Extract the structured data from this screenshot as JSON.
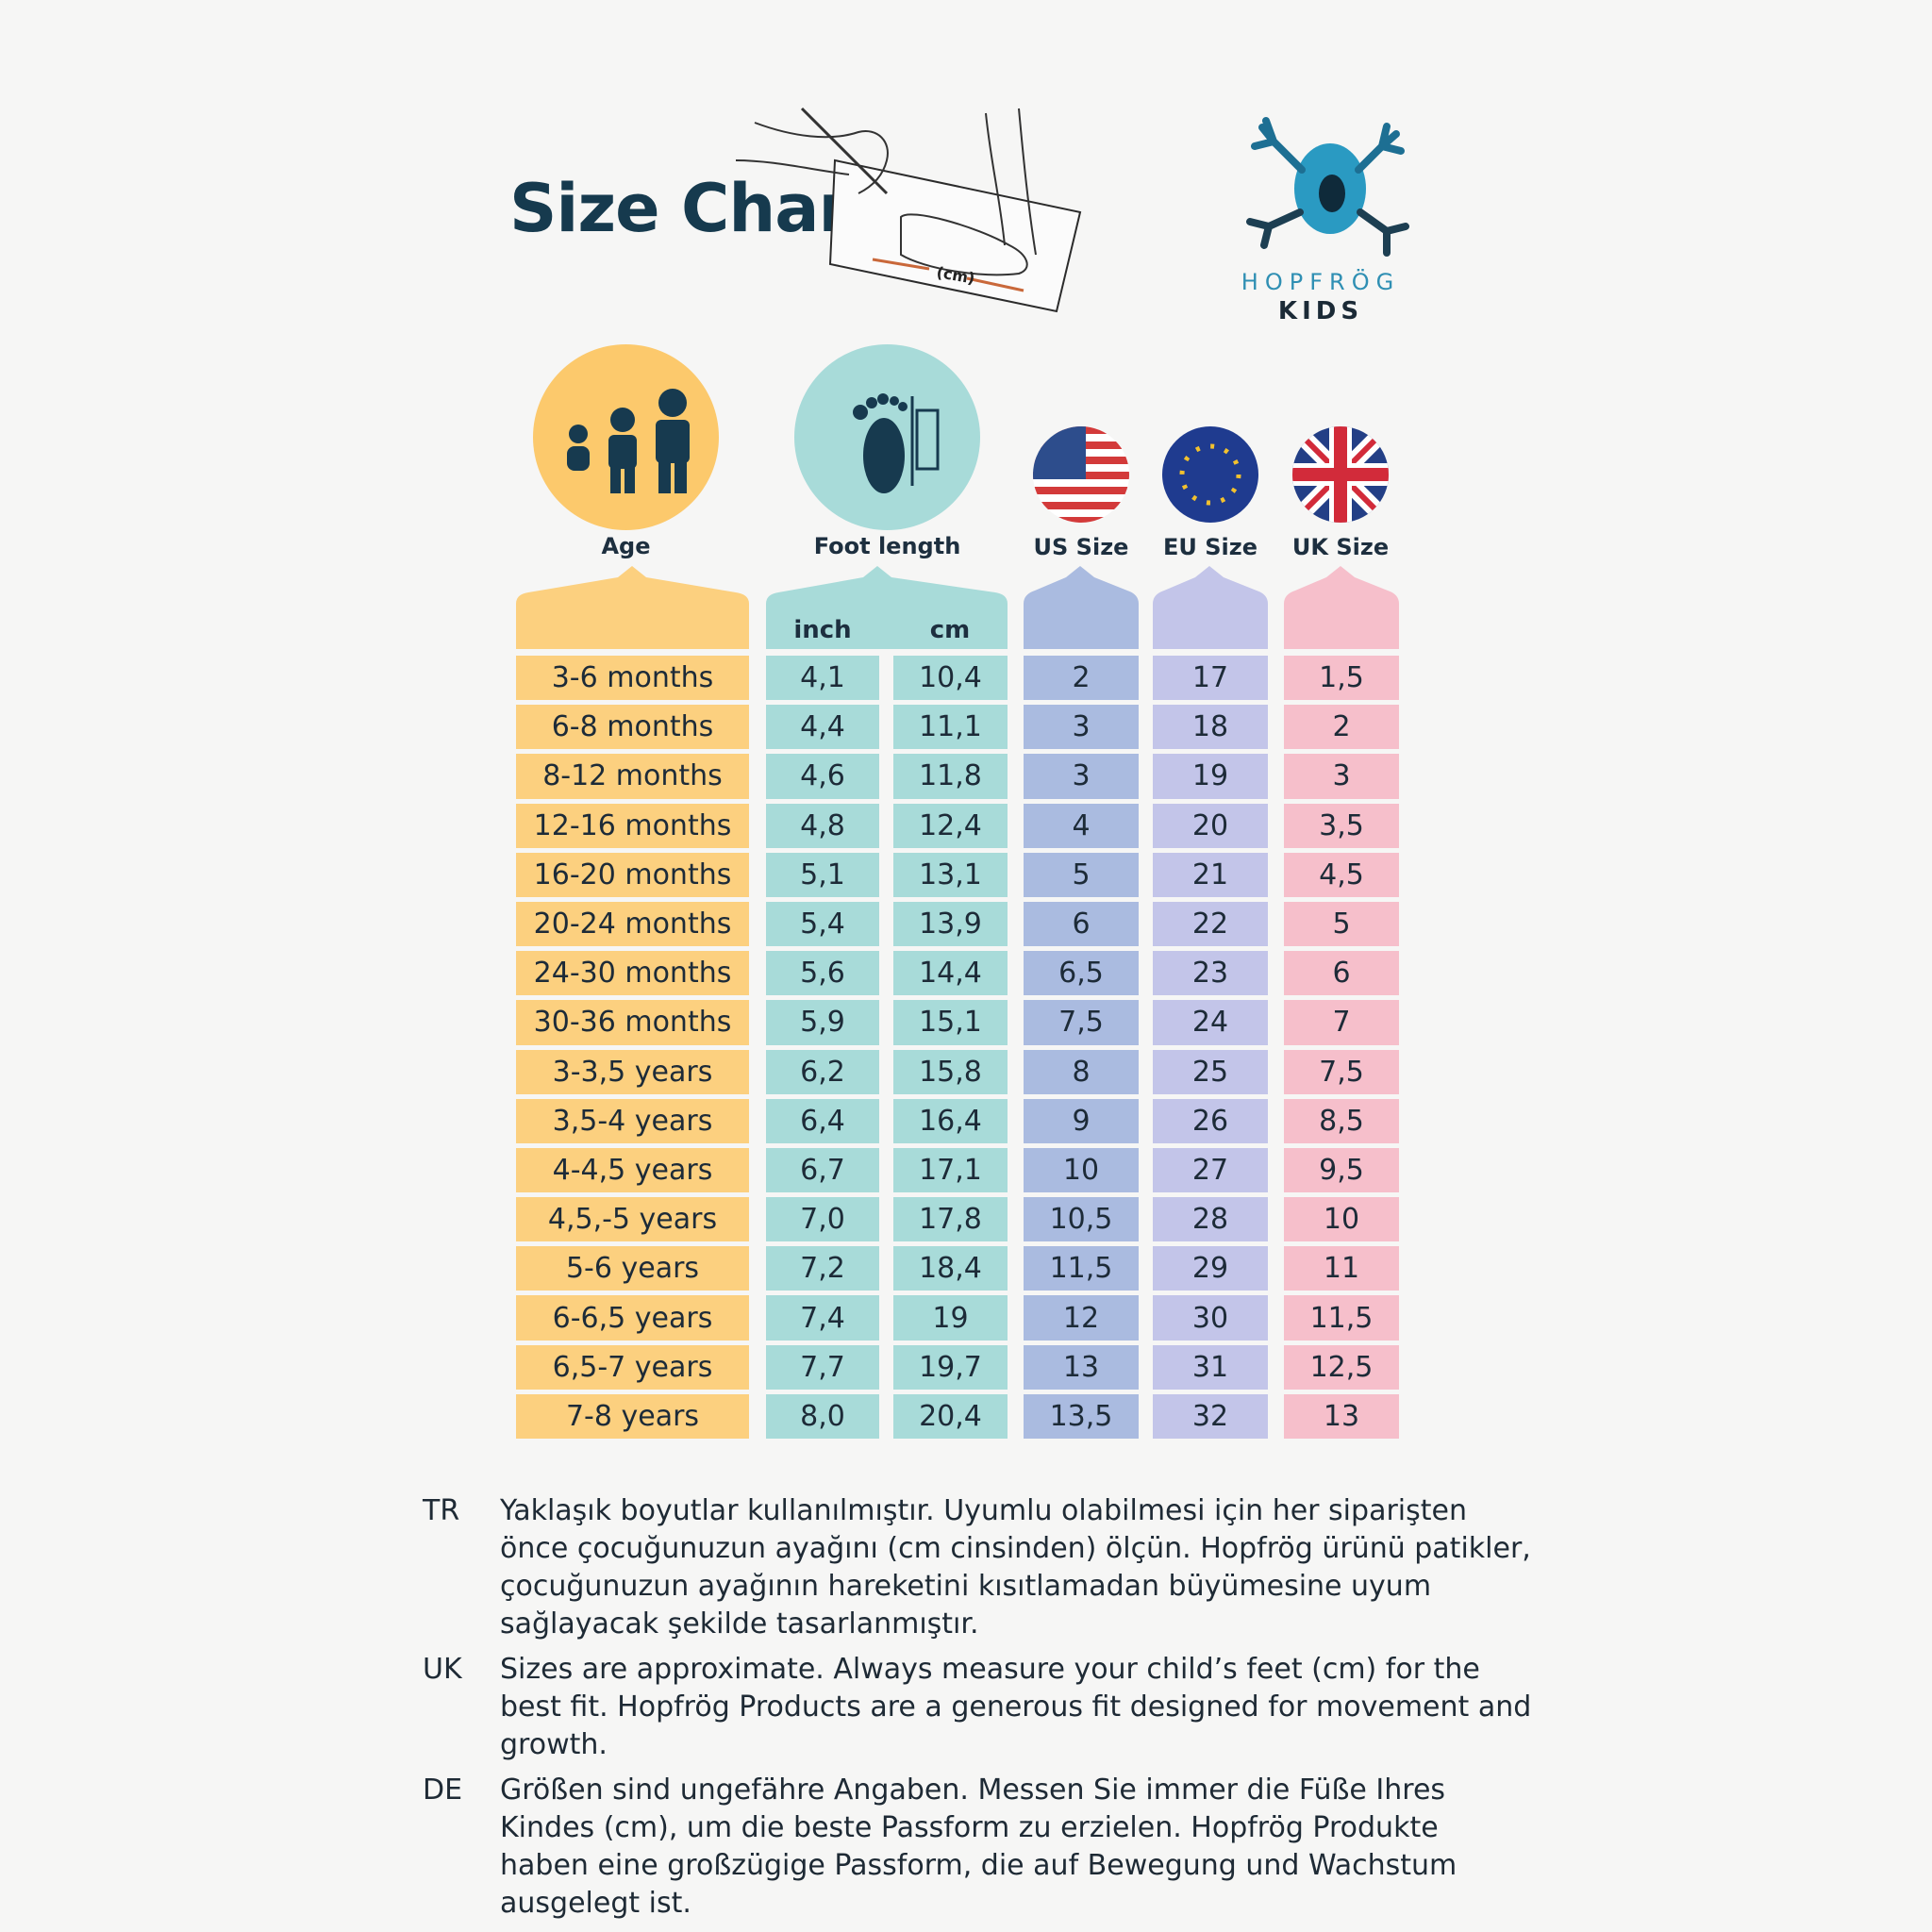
{
  "title": "Size Chart",
  "illustration_label": "(cm)",
  "brand": {
    "name": "HOPFRÖG",
    "sub": "KIDS"
  },
  "columns": {
    "age": "Age",
    "foot_length": "Foot length",
    "us": "US Size",
    "eu": "EU Size",
    "uk": "UK Size",
    "inch": "inch",
    "cm": "cm"
  },
  "rows": [
    {
      "age": "3-6 months",
      "inch": "4,1",
      "cm": "10,4",
      "us": "2",
      "eu": "17",
      "uk": "1,5"
    },
    {
      "age": "6-8 months",
      "inch": "4,4",
      "cm": "11,1",
      "us": "3",
      "eu": "18",
      "uk": "2"
    },
    {
      "age": "8-12 months",
      "inch": "4,6",
      "cm": "11,8",
      "us": "3",
      "eu": "19",
      "uk": "3"
    },
    {
      "age": "12-16 months",
      "inch": "4,8",
      "cm": "12,4",
      "us": "4",
      "eu": "20",
      "uk": "3,5"
    },
    {
      "age": "16-20 months",
      "inch": "5,1",
      "cm": "13,1",
      "us": "5",
      "eu": "21",
      "uk": "4,5"
    },
    {
      "age": "20-24 months",
      "inch": "5,4",
      "cm": "13,9",
      "us": "6",
      "eu": "22",
      "uk": "5"
    },
    {
      "age": "24-30 months",
      "inch": "5,6",
      "cm": "14,4",
      "us": "6,5",
      "eu": "23",
      "uk": "6"
    },
    {
      "age": "30-36 months",
      "inch": "5,9",
      "cm": "15,1",
      "us": "7,5",
      "eu": "24",
      "uk": "7"
    },
    {
      "age": "3-3,5 years",
      "inch": "6,2",
      "cm": "15,8",
      "us": "8",
      "eu": "25",
      "uk": "7,5"
    },
    {
      "age": "3,5-4 years",
      "inch": "6,4",
      "cm": "16,4",
      "us": "9",
      "eu": "26",
      "uk": "8,5"
    },
    {
      "age": "4-4,5 years",
      "inch": "6,7",
      "cm": "17,1",
      "us": "10",
      "eu": "27",
      "uk": "9,5"
    },
    {
      "age": "4,5,-5 years",
      "inch": "7,0",
      "cm": "17,8",
      "us": "10,5",
      "eu": "28",
      "uk": "10"
    },
    {
      "age": "5-6 years",
      "inch": "7,2",
      "cm": "18,4",
      "us": "11,5",
      "eu": "29",
      "uk": "11"
    },
    {
      "age": "6-6,5 years",
      "inch": "7,4",
      "cm": "19",
      "us": "12",
      "eu": "30",
      "uk": "11,5"
    },
    {
      "age": "6,5-7 years",
      "inch": "7,7",
      "cm": "19,7",
      "us": "13",
      "eu": "31",
      "uk": "12,5"
    },
    {
      "age": "7-8 years",
      "inch": "8,0",
      "cm": "20,4",
      "us": "13,5",
      "eu": "32",
      "uk": "13"
    }
  ],
  "notes": [
    {
      "code": "TR",
      "text": "Yaklaşık boyutlar kullanılmıştır. Uyumlu olabilmesi için her siparişten önce çocuğunuzun ayağını (cm cinsinden) ölçün. Hopfrög ürünü patikler, çocuğunuzun ayağının hareketini kısıtlamadan büyümesine uyum sağlayacak şekilde tasarlanmıştır."
    },
    {
      "code": "UK",
      "text": "Sizes are approximate. Always measure your child’s feet (cm) for the best fit. Hopfrög Products are a generous fit designed for movement and growth."
    },
    {
      "code": "DE",
      "text": "Größen sind ungefähre Angaben. Messen Sie immer die Füße Ihres Kindes (cm), um die beste Passform zu erzielen. Hopfrög Produkte haben eine großzügige Passform, die auf Bewegung und Wachstum ausgelegt ist."
    }
  ],
  "colors": {
    "age": "#fcd07f",
    "foot": "#a8dbd9",
    "us": "#aabbe0",
    "eu": "#c3c5e9",
    "uk": "#f6bfcb",
    "title": "#163a4e",
    "frog": "#2a9ac2"
  },
  "icons": [
    "measuring-foot-illustration",
    "frog-logo-icon",
    "children-icon",
    "footprint-ruler-icon",
    "us-flag-icon",
    "eu-flag-icon",
    "uk-flag-icon"
  ]
}
